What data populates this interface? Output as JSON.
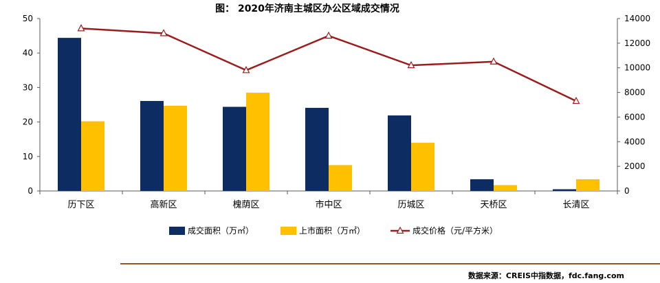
{
  "source": "数据来源：CREIS中指数据，fdc.fang.com",
  "colors": {
    "bar1": "#0d2d62",
    "bar2": "#ffc000",
    "line": "#9b1c1c"
  },
  "chart_data": {
    "type": "bar",
    "title": "图：  2020年济南主城区办公区域成交情况",
    "categories": [
      "历下区",
      "高新区",
      "槐荫区",
      "市中区",
      "历城区",
      "天桥区",
      "长清区"
    ],
    "series": [
      {
        "name": "成交面积（万㎡）",
        "kind": "bar",
        "axis": "left",
        "values": [
          44.4,
          26.1,
          24.4,
          24.1,
          21.9,
          3.4,
          0.5
        ]
      },
      {
        "name": "上市面积（万㎡）",
        "kind": "bar",
        "axis": "left",
        "values": [
          20.2,
          24.7,
          28.5,
          7.5,
          14.0,
          1.7,
          3.4
        ]
      },
      {
        "name": "成交价格（元/平方米）",
        "kind": "line",
        "axis": "right",
        "values": [
          13200,
          12800,
          9800,
          12600,
          10200,
          10500,
          7300
        ]
      }
    ],
    "ylim_left": [
      0,
      50
    ],
    "yticks_left": [
      "0",
      "10",
      "20",
      "30",
      "40",
      "50"
    ],
    "ylim_right": [
      0,
      14000
    ],
    "yticks_right": [
      "0",
      "2000",
      "4000",
      "6000",
      "8000",
      "10000",
      "12000",
      "14000"
    ],
    "grid": false,
    "legend_position": "bottom"
  }
}
